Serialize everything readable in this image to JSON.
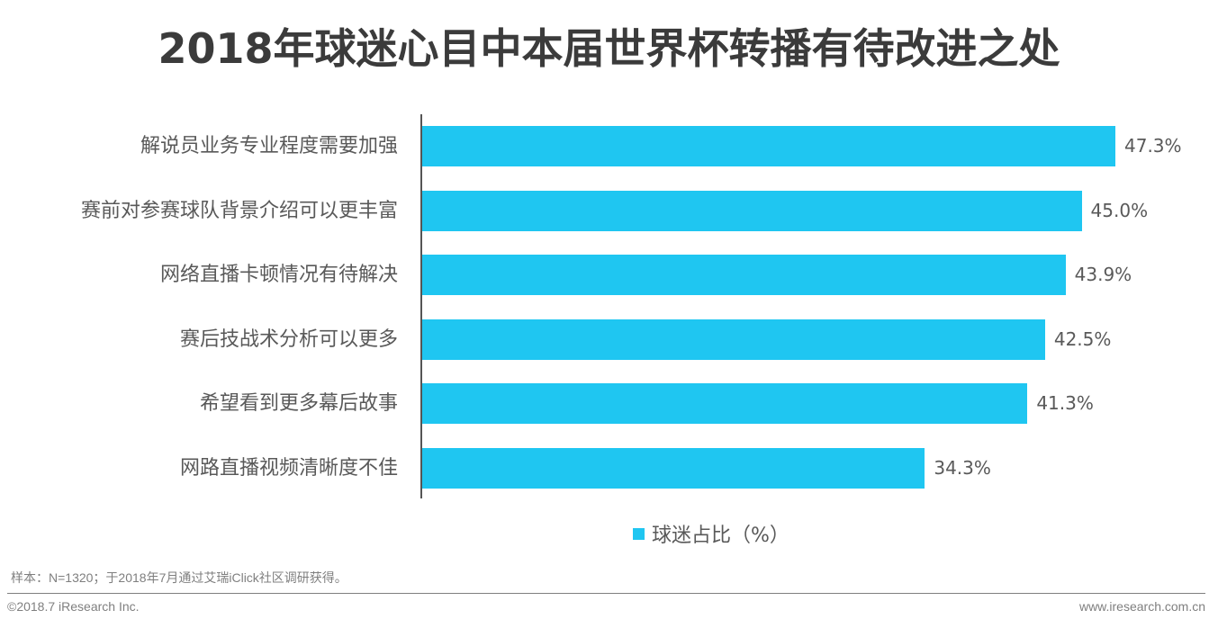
{
  "title": "2018年球迷心目中本届世界杯转播有待改进之处",
  "chart_data": {
    "type": "bar",
    "orientation": "horizontal",
    "title": "2018年球迷心目中本届世界杯转播有待改进之处",
    "categories": [
      "解说员业务专业程度需要加强",
      "赛前对参赛球队背景介绍可以更丰富",
      "网络直播卡顿情况有待解决",
      "赛后技战术分析可以更多",
      "希望看到更多幕后故事",
      "网路直播视频清晰度不佳"
    ],
    "series": [
      {
        "name": "球迷占比（%）",
        "values": [
          47.3,
          45.0,
          43.9,
          42.5,
          41.3,
          34.3
        ]
      }
    ],
    "value_labels": [
      "47.3%",
      "45.0%",
      "43.9%",
      "42.5%",
      "41.3%",
      "34.3%"
    ],
    "xlabel": "",
    "ylabel": "",
    "grid": false,
    "legend_position": "bottom",
    "color": "#1fc6f1"
  },
  "legend": {
    "label": "球迷占比（%）",
    "color": "#1fc6f1"
  },
  "footer": {
    "note": "样本：N=1320；于2018年7月通过艾瑞iClick社区调研获得。",
    "copyright": "©2018.7 iResearch Inc.",
    "website": "www.iresearch.com.cn"
  }
}
